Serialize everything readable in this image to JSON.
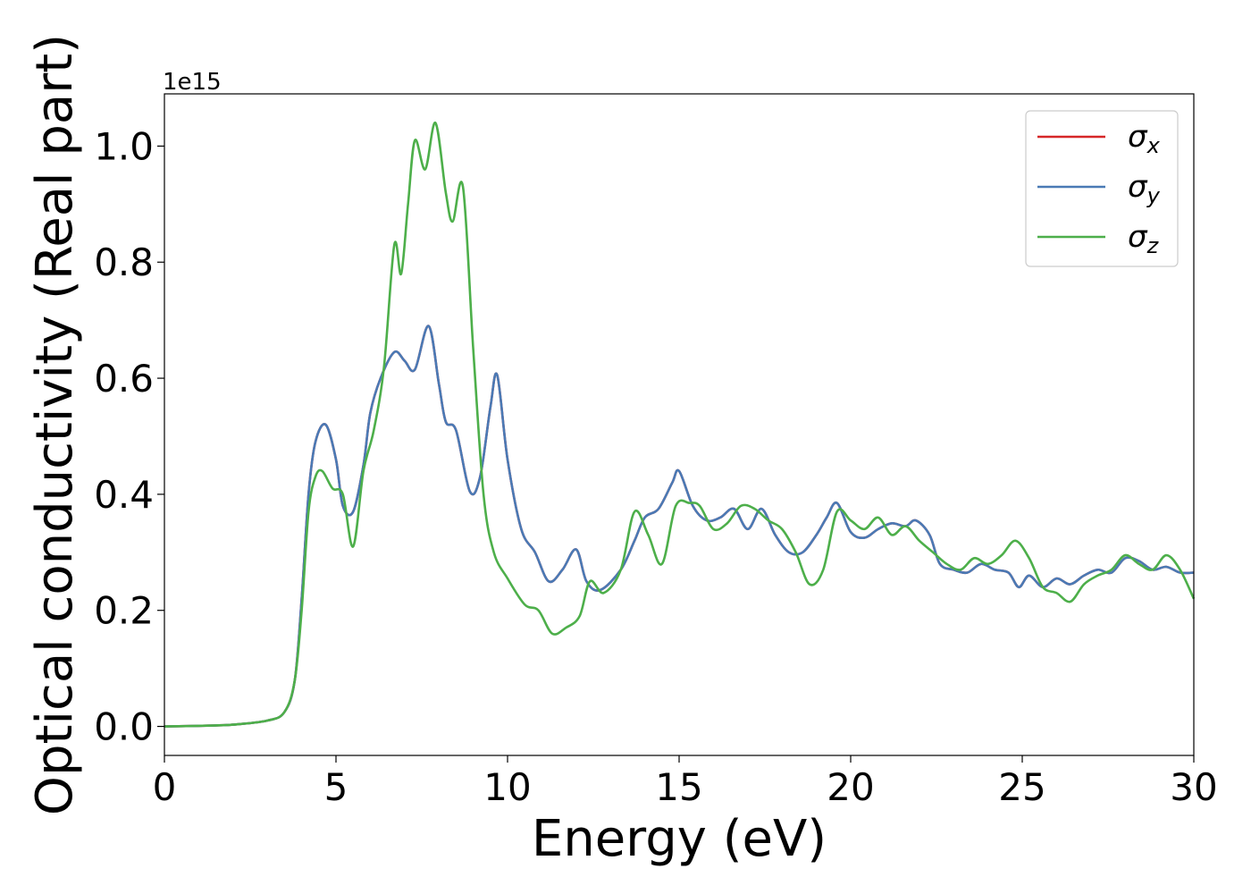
{
  "chart_data": {
    "type": "line",
    "xlabel": "Energy (eV)",
    "ylabel": "Optical conductivity (Real part)",
    "offset_text": "1e15",
    "xlim": [
      0,
      30
    ],
    "ylim": [
      -0.05,
      1.09
    ],
    "xticks": [
      0,
      5,
      10,
      15,
      20,
      25,
      30
    ],
    "xtick_labels": [
      "0",
      "5",
      "10",
      "15",
      "20",
      "25",
      "30"
    ],
    "yticks": [
      0.0,
      0.2,
      0.4,
      0.6,
      0.8,
      1.0
    ],
    "ytick_labels": [
      "0.0",
      "0.2",
      "0.4",
      "0.6",
      "0.8",
      "1.0"
    ],
    "legend_position": "top-right",
    "grid": false,
    "series": [
      {
        "name": "σx",
        "symbol": "σ",
        "subscript": "x",
        "color": "#d62728",
        "x": [
          0,
          1,
          2,
          3,
          3.5,
          3.8,
          4.0,
          4.2,
          4.4,
          4.7,
          5.0,
          5.2,
          5.5,
          5.8,
          6.0,
          6.3,
          6.7,
          7.0,
          7.3,
          7.7,
          8.0,
          8.2,
          8.5,
          8.9,
          9.2,
          9.5,
          9.7,
          10.0,
          10.4,
          10.8,
          11.2,
          11.6,
          12.0,
          12.3,
          12.7,
          13.3,
          13.7,
          14.0,
          14.4,
          14.8,
          15.0,
          15.4,
          15.8,
          16.2,
          16.6,
          17.0,
          17.4,
          17.8,
          18.2,
          18.6,
          19.0,
          19.3,
          19.6,
          20.0,
          20.4,
          20.8,
          21.2,
          21.6,
          21.9,
          22.3,
          22.6,
          23.0,
          23.4,
          23.8,
          24.2,
          24.6,
          24.9,
          25.2,
          25.6,
          26.0,
          26.4,
          26.8,
          27.2,
          27.6,
          28.0,
          28.4,
          28.8,
          29.2,
          29.6,
          30.0
        ],
        "y": [
          0.0,
          0.001,
          0.003,
          0.01,
          0.025,
          0.08,
          0.22,
          0.4,
          0.49,
          0.52,
          0.46,
          0.38,
          0.37,
          0.45,
          0.54,
          0.6,
          0.645,
          0.63,
          0.615,
          0.69,
          0.59,
          0.525,
          0.51,
          0.405,
          0.43,
          0.55,
          0.605,
          0.46,
          0.34,
          0.3,
          0.25,
          0.27,
          0.305,
          0.25,
          0.235,
          0.27,
          0.32,
          0.36,
          0.375,
          0.42,
          0.44,
          0.38,
          0.355,
          0.36,
          0.375,
          0.34,
          0.375,
          0.33,
          0.3,
          0.3,
          0.33,
          0.36,
          0.385,
          0.335,
          0.325,
          0.34,
          0.35,
          0.345,
          0.355,
          0.33,
          0.28,
          0.27,
          0.265,
          0.28,
          0.27,
          0.265,
          0.24,
          0.26,
          0.24,
          0.255,
          0.245,
          0.26,
          0.27,
          0.265,
          0.29,
          0.285,
          0.27,
          0.275,
          0.265,
          0.265
        ]
      },
      {
        "name": "σy",
        "symbol": "σ",
        "subscript": "y",
        "color": "#4a7ab5",
        "x": [
          0,
          1,
          2,
          3,
          3.5,
          3.8,
          4.0,
          4.2,
          4.4,
          4.7,
          5.0,
          5.2,
          5.5,
          5.8,
          6.0,
          6.3,
          6.7,
          7.0,
          7.3,
          7.7,
          8.0,
          8.2,
          8.5,
          8.9,
          9.2,
          9.5,
          9.7,
          10.0,
          10.4,
          10.8,
          11.2,
          11.6,
          12.0,
          12.3,
          12.7,
          13.3,
          13.7,
          14.0,
          14.4,
          14.8,
          15.0,
          15.4,
          15.8,
          16.2,
          16.6,
          17.0,
          17.4,
          17.8,
          18.2,
          18.6,
          19.0,
          19.3,
          19.6,
          20.0,
          20.4,
          20.8,
          21.2,
          21.6,
          21.9,
          22.3,
          22.6,
          23.0,
          23.4,
          23.8,
          24.2,
          24.6,
          24.9,
          25.2,
          25.6,
          26.0,
          26.4,
          26.8,
          27.2,
          27.6,
          28.0,
          28.4,
          28.8,
          29.2,
          29.6,
          30.0
        ],
        "y": [
          0.0,
          0.001,
          0.003,
          0.01,
          0.025,
          0.08,
          0.22,
          0.4,
          0.49,
          0.52,
          0.46,
          0.38,
          0.37,
          0.45,
          0.54,
          0.6,
          0.645,
          0.63,
          0.615,
          0.69,
          0.59,
          0.525,
          0.51,
          0.405,
          0.43,
          0.55,
          0.605,
          0.46,
          0.34,
          0.3,
          0.25,
          0.27,
          0.305,
          0.25,
          0.235,
          0.27,
          0.32,
          0.36,
          0.375,
          0.42,
          0.44,
          0.38,
          0.355,
          0.36,
          0.375,
          0.34,
          0.375,
          0.33,
          0.3,
          0.3,
          0.33,
          0.36,
          0.385,
          0.335,
          0.325,
          0.34,
          0.35,
          0.345,
          0.355,
          0.33,
          0.28,
          0.27,
          0.265,
          0.28,
          0.27,
          0.265,
          0.24,
          0.26,
          0.24,
          0.255,
          0.245,
          0.26,
          0.27,
          0.265,
          0.29,
          0.285,
          0.27,
          0.275,
          0.265,
          0.265
        ]
      },
      {
        "name": "σz",
        "symbol": "σ",
        "subscript": "z",
        "color": "#4daf4a",
        "x": [
          0,
          1,
          2,
          3,
          3.5,
          3.8,
          4.0,
          4.2,
          4.4,
          4.6,
          4.9,
          5.2,
          5.5,
          5.8,
          6.1,
          6.4,
          6.7,
          6.9,
          7.1,
          7.3,
          7.6,
          7.9,
          8.2,
          8.4,
          8.7,
          9.0,
          9.3,
          9.6,
          10.0,
          10.5,
          10.9,
          11.3,
          11.7,
          12.1,
          12.4,
          12.8,
          13.3,
          13.7,
          14.1,
          14.5,
          14.9,
          15.3,
          15.6,
          16.0,
          16.4,
          16.8,
          17.2,
          17.6,
          18.0,
          18.4,
          18.8,
          19.2,
          19.6,
          20.0,
          20.4,
          20.8,
          21.2,
          21.6,
          22.0,
          22.4,
          22.8,
          23.2,
          23.6,
          24.0,
          24.4,
          24.8,
          25.2,
          25.6,
          26.0,
          26.4,
          26.8,
          27.2,
          27.6,
          28.0,
          28.4,
          28.8,
          29.2,
          29.6,
          30.0
        ],
        "y": [
          0.0,
          0.001,
          0.003,
          0.01,
          0.025,
          0.08,
          0.2,
          0.37,
          0.43,
          0.44,
          0.41,
          0.4,
          0.31,
          0.44,
          0.51,
          0.62,
          0.83,
          0.78,
          0.9,
          1.01,
          0.96,
          1.04,
          0.92,
          0.87,
          0.93,
          0.65,
          0.4,
          0.3,
          0.255,
          0.21,
          0.2,
          0.16,
          0.17,
          0.19,
          0.25,
          0.23,
          0.27,
          0.37,
          0.33,
          0.28,
          0.38,
          0.385,
          0.38,
          0.34,
          0.35,
          0.38,
          0.375,
          0.355,
          0.34,
          0.3,
          0.245,
          0.27,
          0.37,
          0.355,
          0.34,
          0.36,
          0.33,
          0.345,
          0.32,
          0.3,
          0.28,
          0.27,
          0.29,
          0.28,
          0.295,
          0.32,
          0.29,
          0.24,
          0.23,
          0.215,
          0.245,
          0.26,
          0.27,
          0.295,
          0.28,
          0.27,
          0.295,
          0.27,
          0.22
        ]
      }
    ]
  }
}
